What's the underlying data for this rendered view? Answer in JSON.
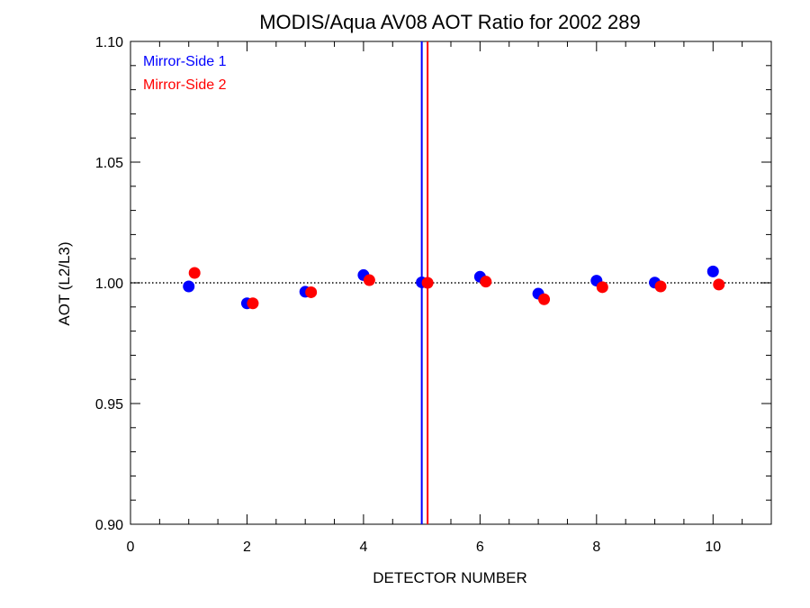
{
  "chart_data": {
    "type": "scatter",
    "title": "MODIS/Aqua AV08 AOT Ratio for 2002 289",
    "xlabel": "DETECTOR NUMBER",
    "ylabel": "AOT (L2/L3)",
    "xlim": [
      0,
      11
    ],
    "ylim": [
      0.9,
      1.1
    ],
    "x_ticks": [
      0,
      2,
      4,
      6,
      8,
      10
    ],
    "x_tick_labels": [
      "0",
      "2",
      "4",
      "6",
      "8",
      "10"
    ],
    "y_ticks": [
      0.9,
      0.95,
      1.0,
      1.05,
      1.1
    ],
    "y_tick_labels": [
      "0.90",
      "0.95",
      "1.00",
      "1.05",
      "1.10"
    ],
    "legend_position": "top-left",
    "reference_line": {
      "y": 1.0,
      "style": "dotted",
      "color": "#000000"
    },
    "vertical_lines": [
      {
        "x": 5.0,
        "color": "#0000ff"
      },
      {
        "x": 5.1,
        "color": "#ff0000"
      }
    ],
    "series": [
      {
        "name": "Mirror-Side 1",
        "color": "#0000ff",
        "x": [
          1,
          2,
          3,
          4,
          5,
          6,
          7,
          8,
          9,
          10
        ],
        "y": [
          0.9985,
          0.9915,
          0.9963,
          1.0032,
          1.0002,
          1.0025,
          0.9955,
          1.0009,
          1.0001,
          1.0047
        ]
      },
      {
        "name": "Mirror-Side 2",
        "color": "#ff0000",
        "x": [
          1.1,
          2.1,
          3.1,
          4.1,
          5.1,
          6.1,
          7.1,
          8.1,
          9.1,
          10.1
        ],
        "y": [
          1.0041,
          0.9915,
          0.9961,
          1.0011,
          1.0,
          1.0005,
          0.9932,
          0.9982,
          0.9985,
          0.9993
        ]
      }
    ]
  }
}
